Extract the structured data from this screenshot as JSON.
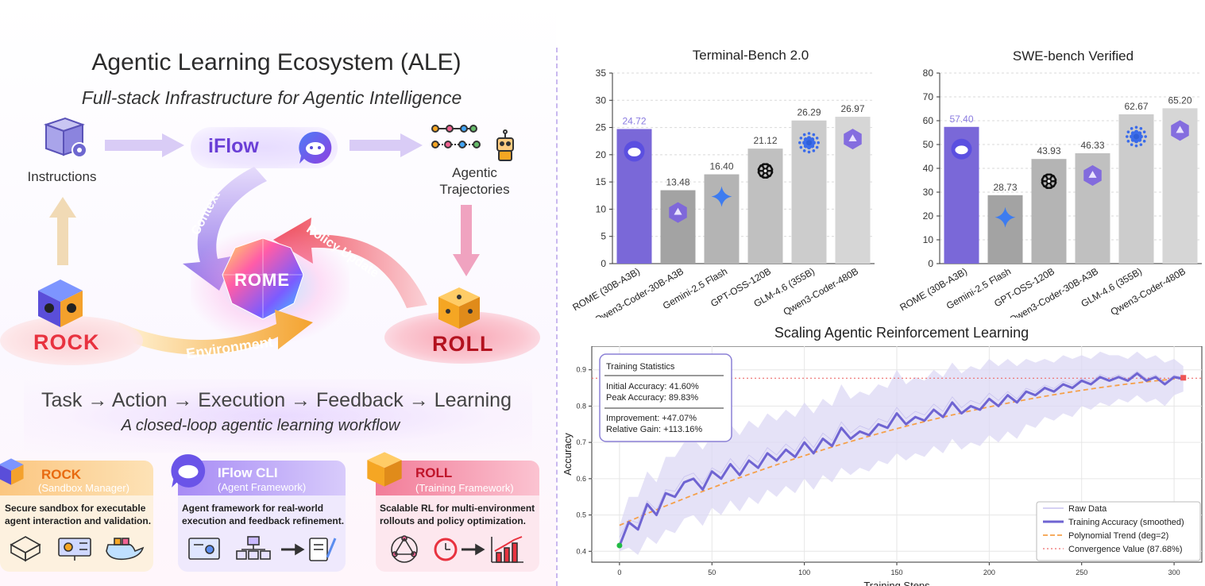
{
  "left_panel": {
    "title": "Agentic Learning Ecosystem (ALE)",
    "subtitle": "Full-stack Infrastructure for Agentic Intelligence",
    "nodes": {
      "instructions": "Instructions",
      "iflow": "iFlow",
      "trajectories_line1": "Agentic",
      "trajectories_line2": "Trajectories",
      "rome": "ROME",
      "rock": "ROCK",
      "roll": "ROLL"
    },
    "arrows": {
      "context": "Context",
      "policy_update": "Policy Update",
      "environment": "Environment"
    },
    "flow": "Task → Action → Execution → Feedback → Learning",
    "flow_subtitle": "A closed-loop agentic learning workflow",
    "cards": [
      {
        "name": "ROCK",
        "role": "(Sandbox Manager)",
        "desc_line1": "Secure sandbox for executable",
        "desc_line2": "agent interaction and validation."
      },
      {
        "name": "IFlow CLI",
        "role": "(Agent Framework)",
        "desc_line1": "Agent framework for real-world",
        "desc_line2": "execution and feedback refinement."
      },
      {
        "name": "ROLL",
        "role": "(Training Framework)",
        "desc_line1": "Scalable RL for multi-environment",
        "desc_line2": "rollouts and policy optimization."
      }
    ],
    "colors": {
      "purple": "#7b5ce0",
      "red": "#e8323f",
      "orange": "#f08a1c",
      "pink": "#f07aa0"
    }
  },
  "chart_data": [
    {
      "type": "bar",
      "title": "Terminal-Bench 2.0",
      "categories": [
        "ROME (30B-A3B)",
        "Qwen3-Coder-30B-A3B",
        "Gemini-2.5 Flash",
        "GPT-OSS-120B",
        "GLM-4.6 (355B)",
        "Qwen3-Coder-480B"
      ],
      "values": [
        24.72,
        13.48,
        16.4,
        21.12,
        26.29,
        26.97
      ],
      "value_labels": [
        "24.72",
        "13.48",
        "16.40",
        "21.12",
        "26.29",
        "26.97"
      ],
      "ylim": [
        0,
        35
      ],
      "yticks": [
        "0",
        "5",
        "10",
        "15",
        "20",
        "25",
        "30",
        "35"
      ],
      "grid": true,
      "colors": [
        "#7a68d8",
        "#a3a3a3",
        "#b4b4b4",
        "#c0c0c0",
        "#cccccc",
        "#d6d6d6"
      ],
      "icons": [
        "iflow-icon",
        "qwen-icon",
        "gemini-icon",
        "openai-icon",
        "glm-icon",
        "qwen-icon"
      ]
    },
    {
      "type": "bar",
      "title": "SWE-bench Verified",
      "categories": [
        "ROME (30B-A3B)",
        "Gemini-2.5 Flash",
        "GPT-OSS-120B",
        "Qwen3-Coder-30B-A3B",
        "GLM-4.6 (355B)",
        "Qwen3-Coder-480B"
      ],
      "values": [
        57.4,
        28.73,
        43.93,
        46.33,
        62.67,
        65.2
      ],
      "value_labels": [
        "57.40",
        "28.73",
        "43.93",
        "46.33",
        "62.67",
        "65.20"
      ],
      "ylim": [
        0,
        80
      ],
      "yticks": [
        "0",
        "10",
        "20",
        "30",
        "40",
        "50",
        "60",
        "70",
        "80"
      ],
      "grid": true,
      "colors": [
        "#7a68d8",
        "#a3a3a3",
        "#b4b4b4",
        "#c0c0c0",
        "#cccccc",
        "#d6d6d6"
      ],
      "icons": [
        "iflow-icon",
        "gemini-icon",
        "openai-icon",
        "qwen-icon",
        "glm-icon",
        "qwen-icon"
      ]
    },
    {
      "type": "line",
      "title": "Scaling Agentic Reinforcement Learning",
      "xlabel": "Training Steps",
      "ylabel": "Accuracy",
      "xlim": [
        -15,
        315
      ],
      "ylim": [
        0.37,
        0.965
      ],
      "xticks": [
        "0",
        "50",
        "100",
        "150",
        "200",
        "250",
        "300"
      ],
      "yticks": [
        "0.4",
        "0.5",
        "0.6",
        "0.7",
        "0.8",
        "0.9"
      ],
      "smoothed_x": [
        0,
        5,
        10,
        15,
        20,
        25,
        30,
        35,
        40,
        45,
        50,
        55,
        60,
        65,
        70,
        75,
        80,
        85,
        90,
        95,
        100,
        105,
        110,
        115,
        120,
        125,
        130,
        135,
        140,
        145,
        150,
        155,
        160,
        165,
        170,
        175,
        180,
        185,
        190,
        195,
        200,
        205,
        210,
        215,
        220,
        225,
        230,
        235,
        240,
        245,
        250,
        255,
        260,
        265,
        270,
        275,
        280,
        285,
        290,
        295,
        300,
        305
      ],
      "smoothed_y": [
        0.415,
        0.48,
        0.46,
        0.53,
        0.5,
        0.56,
        0.55,
        0.59,
        0.6,
        0.57,
        0.62,
        0.6,
        0.64,
        0.61,
        0.65,
        0.63,
        0.67,
        0.65,
        0.68,
        0.66,
        0.7,
        0.67,
        0.71,
        0.69,
        0.74,
        0.71,
        0.73,
        0.72,
        0.75,
        0.74,
        0.78,
        0.75,
        0.77,
        0.76,
        0.79,
        0.77,
        0.81,
        0.78,
        0.8,
        0.79,
        0.82,
        0.8,
        0.83,
        0.81,
        0.84,
        0.83,
        0.85,
        0.84,
        0.86,
        0.85,
        0.87,
        0.86,
        0.88,
        0.87,
        0.88,
        0.87,
        0.89,
        0.87,
        0.88,
        0.86,
        0.88,
        0.875
      ],
      "raw_band_upper": [
        0.47,
        0.55,
        0.55,
        0.62,
        0.59,
        0.66,
        0.66,
        0.7,
        0.71,
        0.68,
        0.72,
        0.71,
        0.75,
        0.72,
        0.76,
        0.74,
        0.78,
        0.76,
        0.79,
        0.77,
        0.81,
        0.78,
        0.82,
        0.8,
        0.86,
        0.82,
        0.84,
        0.83,
        0.86,
        0.85,
        0.9,
        0.86,
        0.88,
        0.87,
        0.9,
        0.88,
        0.92,
        0.89,
        0.91,
        0.9,
        0.93,
        0.91,
        0.93,
        0.91,
        0.93,
        0.92,
        0.93,
        0.92,
        0.94,
        0.93,
        0.94,
        0.93,
        0.95,
        0.94,
        0.94,
        0.93,
        0.95,
        0.93,
        0.94,
        0.92,
        0.93,
        0.91
      ],
      "raw_band_lower": [
        0.4,
        0.41,
        0.39,
        0.44,
        0.42,
        0.46,
        0.45,
        0.49,
        0.5,
        0.47,
        0.52,
        0.5,
        0.54,
        0.51,
        0.55,
        0.53,
        0.57,
        0.55,
        0.58,
        0.56,
        0.6,
        0.57,
        0.61,
        0.59,
        0.63,
        0.61,
        0.63,
        0.62,
        0.65,
        0.64,
        0.67,
        0.65,
        0.67,
        0.66,
        0.69,
        0.67,
        0.71,
        0.68,
        0.7,
        0.69,
        0.72,
        0.7,
        0.73,
        0.71,
        0.75,
        0.74,
        0.77,
        0.76,
        0.78,
        0.77,
        0.8,
        0.79,
        0.81,
        0.8,
        0.82,
        0.81,
        0.83,
        0.81,
        0.82,
        0.8,
        0.83,
        0.84
      ],
      "trend_x": [
        0,
        305
      ],
      "trend_coef": {
        "a": 0.4716,
        "b": 0.002206,
        "c": -2.874e-06
      },
      "convergence_value": 0.8768,
      "start_point": {
        "x": 0,
        "y": 0.416
      },
      "end_point": {
        "x": 305,
        "y": 0.878
      },
      "stats_box": {
        "title": "Training Statistics",
        "line1": "Initial Accuracy: 41.60%",
        "line2": "Peak Accuracy:    89.83%",
        "line3": "Improvement: +47.07%",
        "line4": "Relative Gain: +113.16%"
      },
      "legend": {
        "placement": "bottom-right",
        "entries": [
          "Raw Data",
          "Training Accuracy (smoothed)",
          "Polynomial Trend (deg=2)",
          "Convergence Value (87.68%)"
        ]
      },
      "colors": {
        "smoothed": "#6f64d2",
        "band": "#dcd8f4",
        "trend": "#f5a04a",
        "convergence": "#ee6b6b",
        "start": "#22bb44",
        "end": "#ee5555"
      }
    }
  ]
}
